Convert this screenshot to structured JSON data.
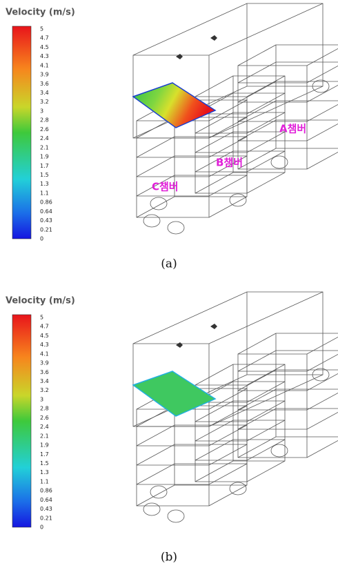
{
  "panels": [
    {
      "legend_title": "Velocity (m/s)",
      "legend_labels": [
        5,
        4.7,
        4.5,
        4.3,
        4.1,
        3.9,
        3.6,
        3.4,
        3.2,
        3,
        2.8,
        2.6,
        2.4,
        2.1,
        1.9,
        1.7,
        1.5,
        1.3,
        1.1,
        0.86,
        0.64,
        0.43,
        0.21,
        0
      ],
      "chamber_labels": [
        "A챔버",
        "B챔버",
        "C챔버"
      ],
      "caption": "(a)"
    },
    {
      "legend_title": "Velocity (m/s)",
      "legend_labels": [
        5,
        4.7,
        4.5,
        4.3,
        4.1,
        3.9,
        3.6,
        3.4,
        3.2,
        3,
        2.8,
        2.6,
        2.4,
        2.1,
        1.9,
        1.7,
        1.5,
        1.3,
        1.1,
        0.86,
        0.64,
        0.43,
        0.21,
        0
      ],
      "caption": "(b)"
    }
  ]
}
